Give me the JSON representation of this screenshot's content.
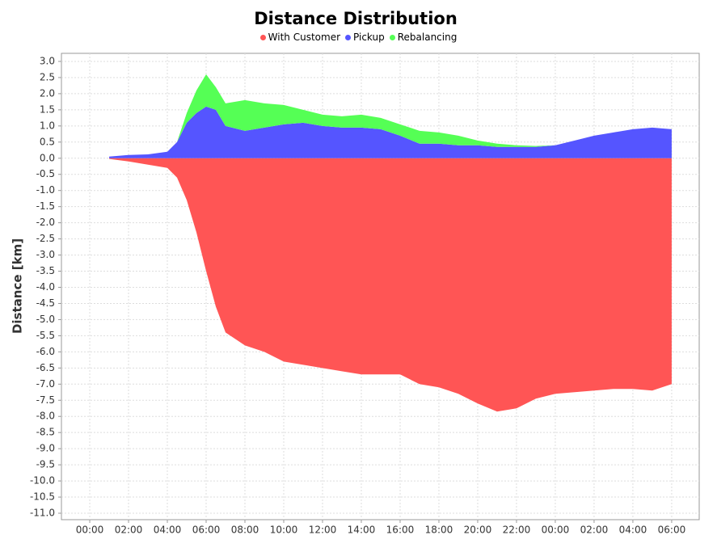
{
  "chart_data": {
    "type": "stacked-area",
    "title": "Distance Distribution",
    "y_label": "Distance [km]",
    "x": [
      1,
      2,
      3,
      4,
      4.5,
      5,
      5.5,
      6,
      6.5,
      7,
      8,
      9,
      10,
      11,
      12,
      13,
      14,
      15,
      16,
      17,
      18,
      19,
      20,
      21,
      22,
      23,
      24,
      25,
      26,
      27,
      28,
      29,
      30
    ],
    "series": [
      {
        "name": "With Customer",
        "color": "#ff5555",
        "values": [
          -0.02,
          -0.1,
          -0.2,
          -0.3,
          -0.6,
          -1.3,
          -2.3,
          -3.5,
          -4.6,
          -5.4,
          -5.8,
          -6.0,
          -6.3,
          -6.4,
          -6.5,
          -6.6,
          -6.7,
          -6.7,
          -6.7,
          -7.0,
          -7.1,
          -7.3,
          -7.6,
          -7.85,
          -7.75,
          -7.45,
          -7.3,
          -7.25,
          -7.2,
          -7.15,
          -7.15,
          -7.2,
          -7.0
        ]
      },
      {
        "name": "Pickup",
        "color": "#5555ff",
        "values": [
          0.05,
          0.1,
          0.12,
          0.2,
          0.5,
          1.1,
          1.4,
          1.6,
          1.5,
          1.0,
          0.85,
          0.95,
          1.05,
          1.1,
          1.0,
          0.95,
          0.95,
          0.9,
          0.7,
          0.45,
          0.45,
          0.4,
          0.4,
          0.35,
          0.35,
          0.35,
          0.4,
          0.55,
          0.7,
          0.8,
          0.9,
          0.95,
          0.9
        ]
      },
      {
        "name": "Rebalancing",
        "color": "#55ff55",
        "values": [
          0,
          0,
          0,
          0,
          0,
          0.3,
          0.7,
          1.0,
          0.7,
          0.7,
          0.95,
          0.75,
          0.6,
          0.4,
          0.35,
          0.35,
          0.4,
          0.35,
          0.35,
          0.4,
          0.35,
          0.3,
          0.15,
          0.1,
          0.05,
          0.03,
          0,
          0,
          0,
          0,
          0,
          0,
          0
        ]
      }
    ],
    "xlim": [
      -1.46,
      31.42
    ],
    "xticks": [
      {
        "value": 0,
        "label": "00:00"
      },
      {
        "value": 2,
        "label": "02:00"
      },
      {
        "value": 4,
        "label": "04:00"
      },
      {
        "value": 6,
        "label": "06:00"
      },
      {
        "value": 8,
        "label": "08:00"
      },
      {
        "value": 10,
        "label": "10:00"
      },
      {
        "value": 12,
        "label": "12:00"
      },
      {
        "value": 14,
        "label": "14:00"
      },
      {
        "value": 16,
        "label": "16:00"
      },
      {
        "value": 18,
        "label": "18:00"
      },
      {
        "value": 20,
        "label": "20:00"
      },
      {
        "value": 22,
        "label": "22:00"
      },
      {
        "value": 24,
        "label": "00:00"
      },
      {
        "value": 26,
        "label": "02:00"
      },
      {
        "value": 28,
        "label": "04:00"
      },
      {
        "value": 30,
        "label": "06:00"
      }
    ],
    "ylim": [
      -11.2,
      3.25
    ],
    "yticks": [
      {
        "value": 3,
        "label": "3.0"
      },
      2.5,
      {
        "value": 2,
        "label": "2.0"
      },
      1.5,
      {
        "value": 1,
        "label": "1.0"
      },
      0.5,
      {
        "value": 0,
        "label": "0.0"
      },
      -0.5,
      {
        "value": -1,
        "label": "-1.0"
      },
      -1.5,
      {
        "value": -2,
        "label": "-2.0"
      },
      -2.5,
      {
        "value": -3,
        "label": "-3.0"
      },
      -3.5,
      {
        "value": -4,
        "label": "-4.0"
      },
      -4.5,
      {
        "value": -5,
        "label": "-5.0"
      },
      -5.5,
      {
        "value": -6,
        "label": "-6.0"
      },
      -6.5,
      {
        "value": -7,
        "label": "-7.0"
      },
      -7.5,
      {
        "value": -8,
        "label": "-8.0"
      },
      -8.5,
      {
        "value": -9,
        "label": "-9.0"
      },
      -9.5,
      {
        "value": -10,
        "label": "-10.0"
      },
      -10.5,
      {
        "value": -11,
        "label": "-11.0"
      }
    ],
    "grid": true
  }
}
